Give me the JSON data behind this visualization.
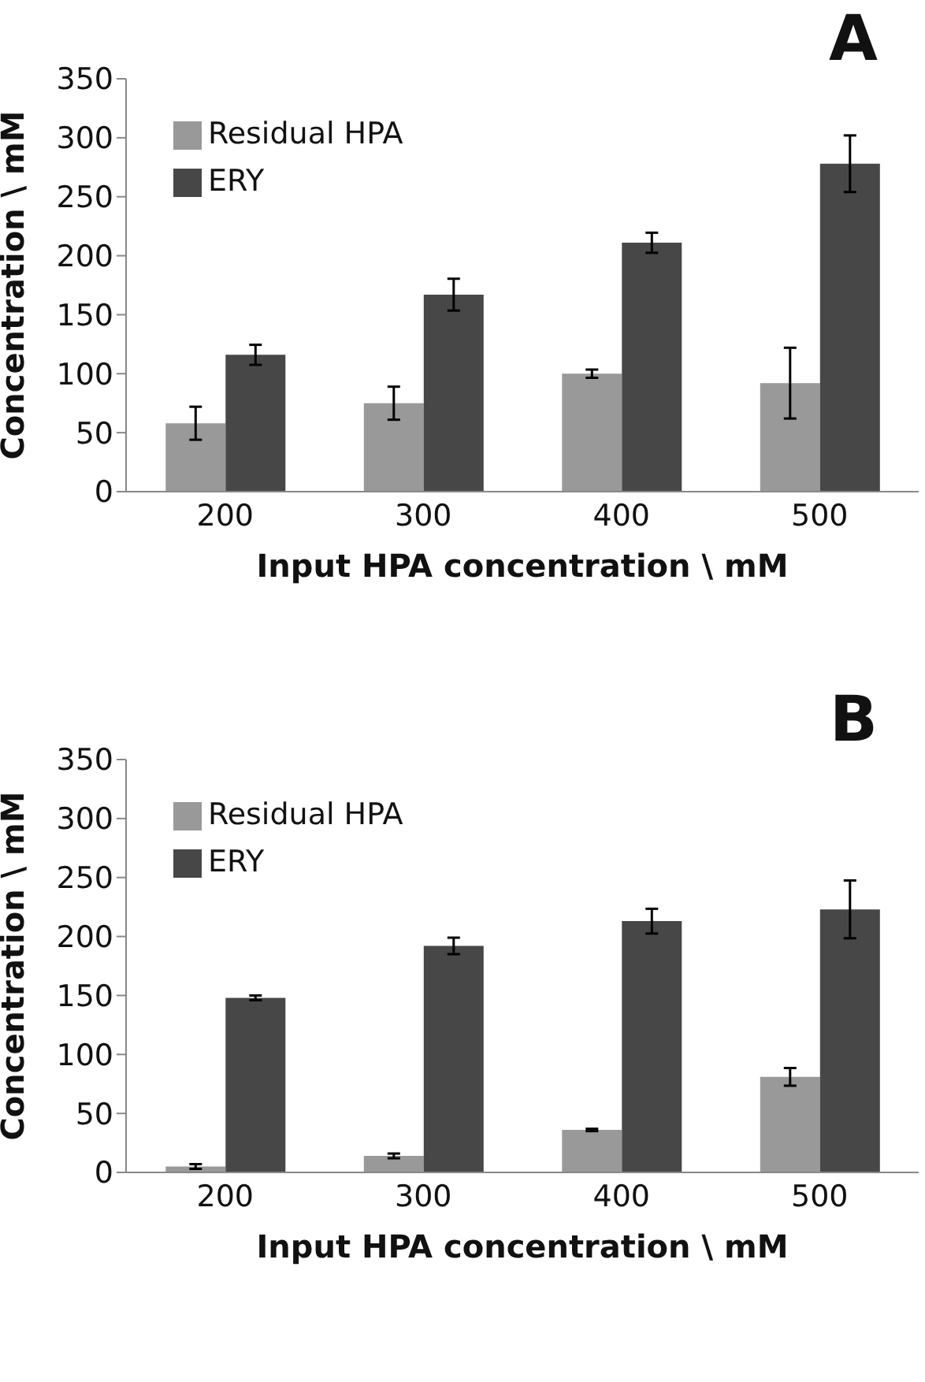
{
  "chart_data": [
    {
      "type": "bar",
      "xlabel": "Input HPA concentration \\ mM",
      "ylabel": "Concentration \\ mM",
      "categories": [
        "200",
        "300",
        "400",
        "500"
      ],
      "ylim": [
        0,
        350
      ],
      "yticks": [
        0,
        50,
        100,
        150,
        200,
        250,
        300,
        350
      ],
      "legend": "top left",
      "grid": false,
      "annotations": [
        "A"
      ],
      "series": [
        {
          "name": "Residual HPA",
          "color": "#999999",
          "values": [
            58,
            75,
            100,
            92
          ],
          "errors": [
            14,
            14,
            3.5,
            30
          ]
        },
        {
          "name": "ERY",
          "color": "#474747",
          "values": [
            116,
            167,
            211,
            278
          ],
          "errors": [
            8.5,
            13.5,
            8.5,
            24
          ]
        }
      ]
    },
    {
      "type": "bar",
      "xlabel": "Input HPA concentration \\ mM",
      "ylabel": "Concentration \\ mM",
      "categories": [
        "200",
        "300",
        "400",
        "500"
      ],
      "ylim": [
        0,
        350
      ],
      "yticks": [
        0,
        50,
        100,
        150,
        200,
        250,
        300,
        350
      ],
      "legend": "top left",
      "grid": false,
      "annotations": [
        "B"
      ],
      "series": [
        {
          "name": "Residual HPA",
          "color": "#999999",
          "values": [
            5,
            14,
            36,
            81
          ],
          "errors": [
            2,
            2,
            1,
            7.5
          ]
        },
        {
          "name": "ERY",
          "color": "#474747",
          "values": [
            148,
            192,
            213,
            223
          ],
          "errors": [
            2,
            7,
            10.5,
            24.5
          ]
        }
      ]
    }
  ]
}
